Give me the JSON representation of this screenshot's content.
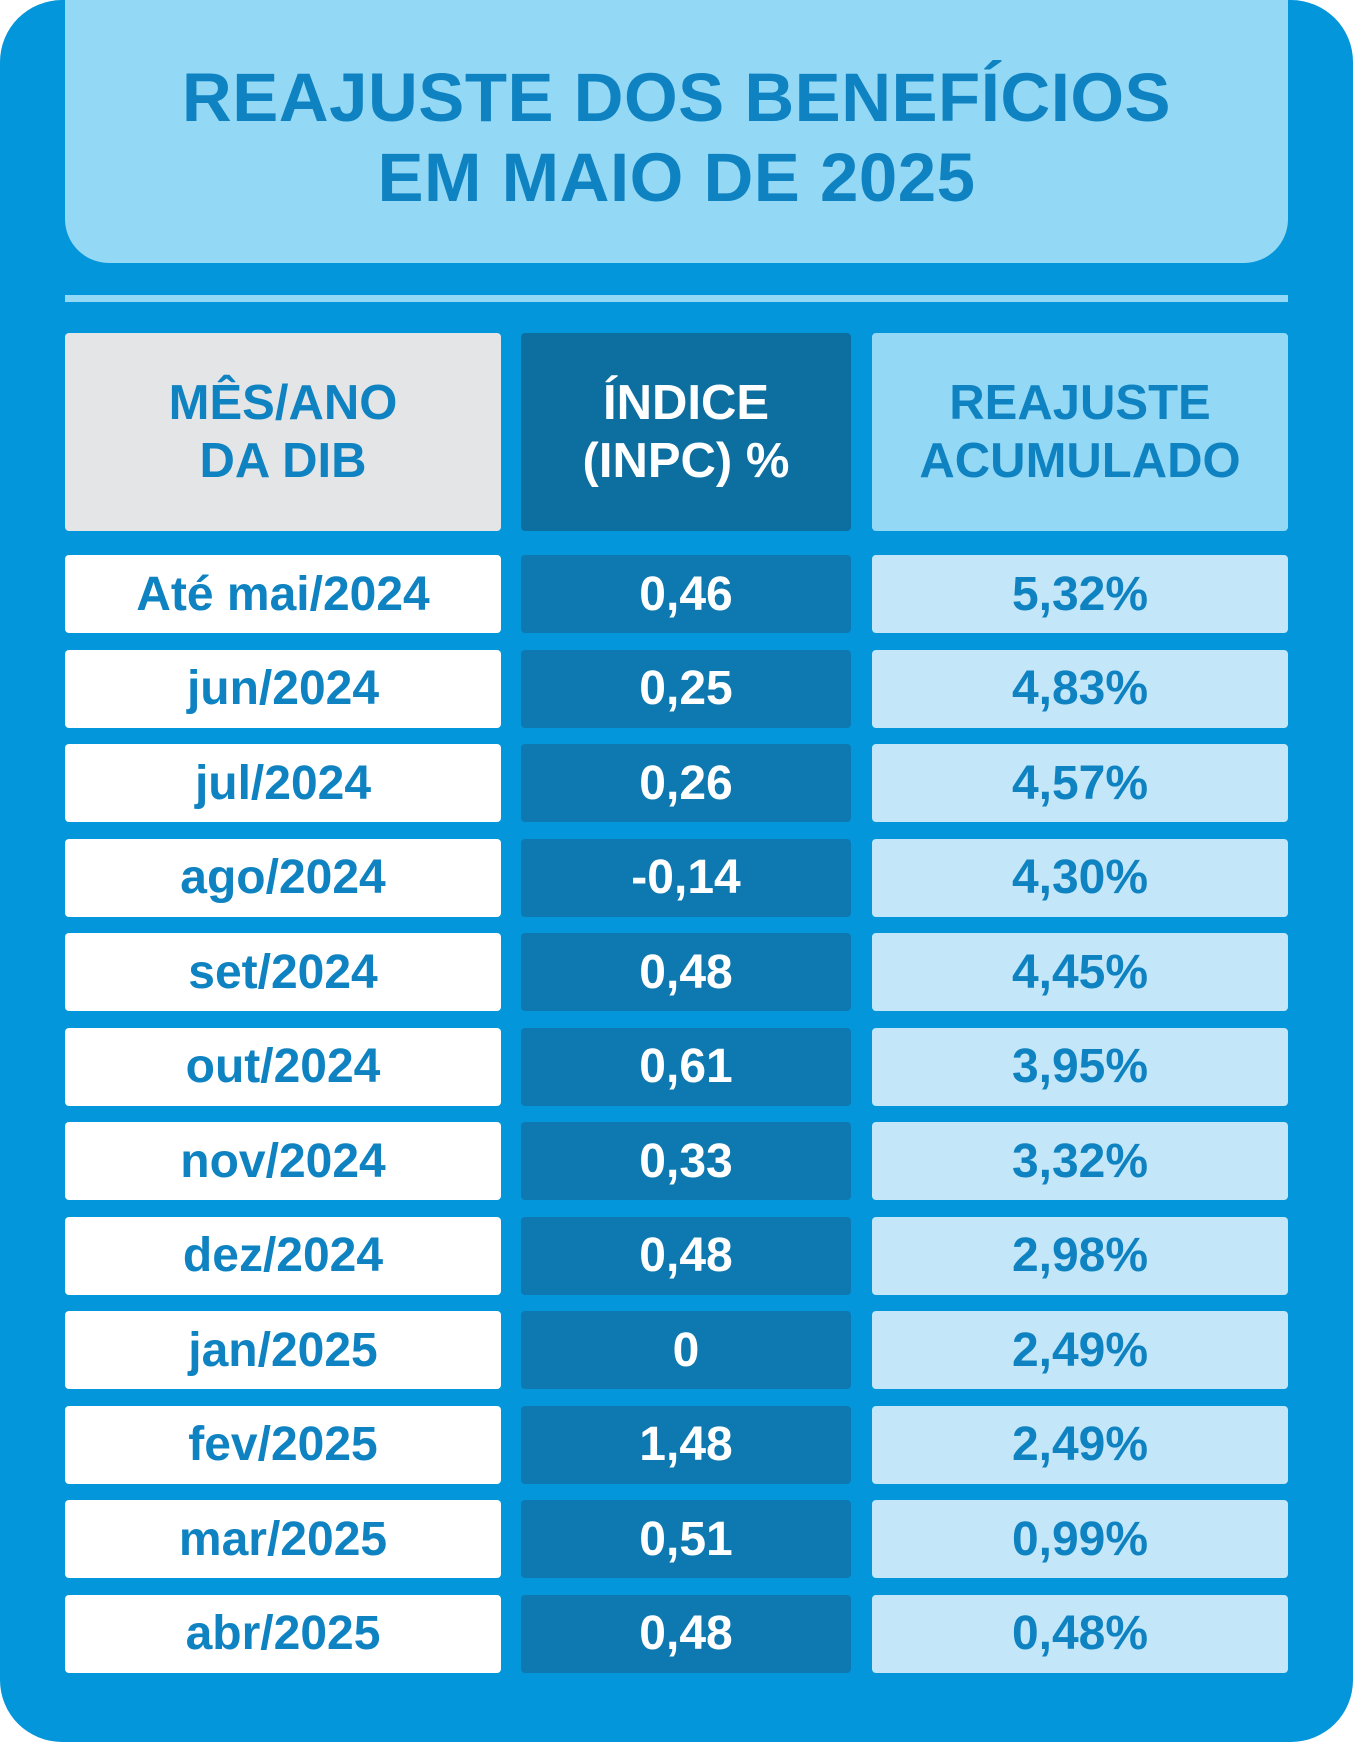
{
  "title": {
    "line1": "REAJUSTE DOS BENEFÍCIOS",
    "line2": "EM MAIO DE 2025"
  },
  "colors": {
    "panel_blue": "#0496db",
    "light_blue": "#93d8f5",
    "dark_blue": "#0d6ea0",
    "mid_blue": "#0e79b0",
    "pale_blue": "#c3e7f9",
    "text_blue": "#0f83c1",
    "header_gray": "#e4e5e7"
  },
  "chart_data": {
    "type": "table",
    "title": "REAJUSTE DOS BENEFÍCIOS EM MAIO DE 2025",
    "columns": [
      {
        "line1": "MÊS/ANO",
        "line2": "DA DIB"
      },
      {
        "line1": "ÍNDICE",
        "line2": "(INPC) %"
      },
      {
        "line1": "REAJUSTE",
        "line2": "ACUMULADO"
      }
    ],
    "rows": [
      {
        "month": "Até mai/2024",
        "index": "0,46",
        "accumulated": "5,32%"
      },
      {
        "month": "jun/2024",
        "index": "0,25",
        "accumulated": "4,83%"
      },
      {
        "month": "jul/2024",
        "index": "0,26",
        "accumulated": "4,57%"
      },
      {
        "month": "ago/2024",
        "index": "-0,14",
        "accumulated": "4,30%"
      },
      {
        "month": "set/2024",
        "index": "0,48",
        "accumulated": "4,45%"
      },
      {
        "month": "out/2024",
        "index": "0,61",
        "accumulated": "3,95%"
      },
      {
        "month": "nov/2024",
        "index": "0,33",
        "accumulated": "3,32%"
      },
      {
        "month": "dez/2024",
        "index": "0,48",
        "accumulated": "2,98%"
      },
      {
        "month": "jan/2025",
        "index": "0",
        "accumulated": "2,49%"
      },
      {
        "month": "fev/2025",
        "index": "1,48",
        "accumulated": "2,49%"
      },
      {
        "month": "mar/2025",
        "index": "0,51",
        "accumulated": "0,99%"
      },
      {
        "month": "abr/2025",
        "index": "0,48",
        "accumulated": "0,48%"
      }
    ]
  }
}
